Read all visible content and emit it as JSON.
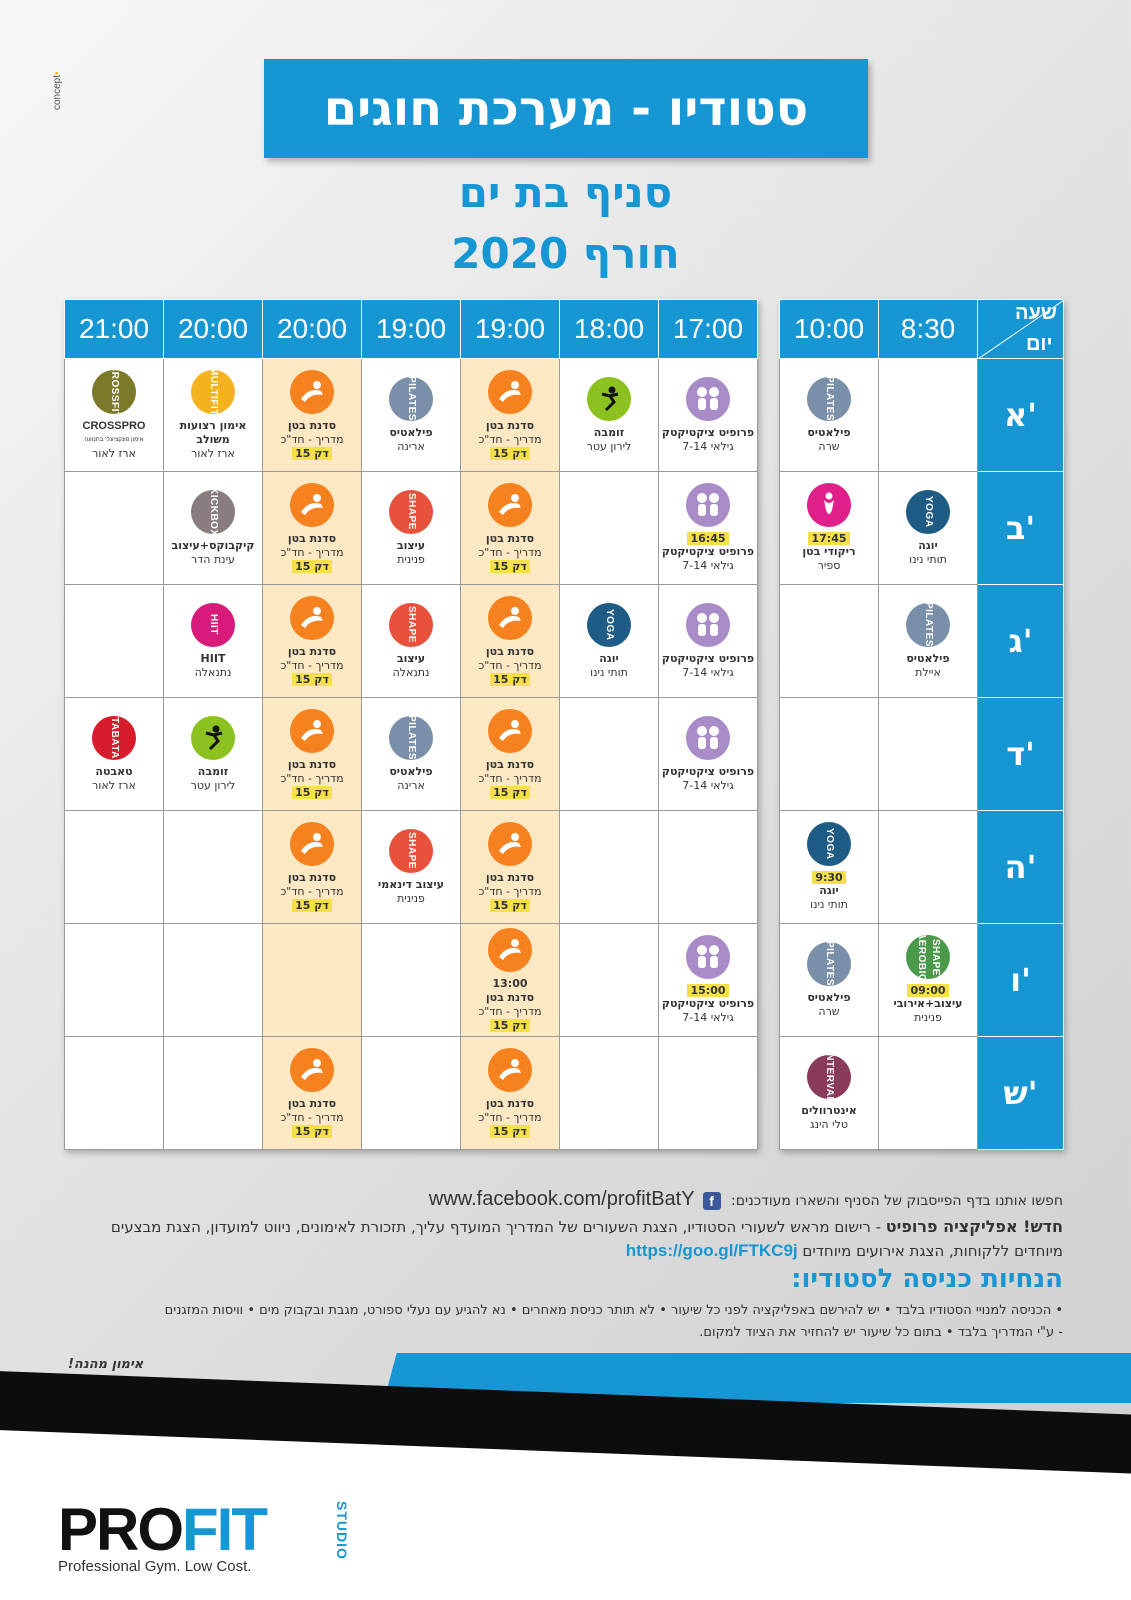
{
  "brand": {
    "concept": "concept"
  },
  "header": {
    "title": "סטודיו - מערכת חוגים",
    "branch": "סניף בת ים",
    "season": "חורף 2020"
  },
  "left_table": {
    "times": [
      "17:00",
      "18:00",
      "19:00",
      "19:00",
      "20:00",
      "20:00",
      "21:00"
    ],
    "rows": [
      [
        "pr|פרופיט ציקטיקטק|גילאי 7-14",
        "zm|זומבה|לירון עטר",
        "bt|סדנת בטן|מדריך - חד\"כ|15 דק",
        "pi|פילאטיס|ארינה",
        "bt|סדנת בטן|מדריך - חד\"כ|15 דק",
        "mu|אימון רצועות משולב|ארז לאור",
        "cp|CROSSPRO|ארז לאור"
      ],
      [
        "pr|פרופיט ציקטיקטק|גילאי 7-14|16:45",
        "",
        "bt|סדנת בטן|מדריך - חד\"כ|15 דק",
        "sh|עיצוב|פנינית",
        "bt|סדנת בטן|מדריך - חד\"כ|15 דק",
        "kb|קיקבוקס+עיצוב|עינת הדר",
        ""
      ],
      [
        "pr|פרופיט ציקטיקטק|גילאי 7-14",
        "yo|יוגה|תותי נינו",
        "bt|סדנת בטן|מדריך - חד\"כ|15 דק",
        "sh|עיצוב|נתנאלה",
        "bt|סדנת בטן|מדריך - חד\"כ|15 דק",
        "hi|HIIT|נתנאלה",
        ""
      ],
      [
        "pr|פרופיט ציקטיקטק|גילאי 7-14",
        "",
        "bt|סדנת בטן|מדריך - חד\"כ|15 דק",
        "pi|פילאטיס|ארינה",
        "bt|סדנת בטן|מדריך - חד\"כ|15 דק",
        "zm|זומבה|לירון עטר",
        "ta|טאבטה|ארז לאור"
      ],
      [
        "",
        "",
        "bt|סדנת בטן|מדריך - חד\"כ|15 דק",
        "sh|עיצוב דינאמי|פנינית",
        "bt|סדנת בטן|מדריך - חד\"כ|15 דק",
        "",
        ""
      ],
      [
        "pr|פרופיט ציקטיקטק|גילאי 7-14|15:00",
        "",
        "bt|סדנת בטן|מדריך - חד\"כ|15 דק|13:00",
        "",
        "",
        "",
        ""
      ],
      [
        "",
        "",
        "bt|סדנת בטן|מדריך - חד\"כ|15 דק",
        "",
        "bt|סדנת בטן|מדריך - חד\"כ|15 דק",
        "",
        ""
      ]
    ]
  },
  "right_table": {
    "corner_top": "שעה",
    "corner_bottom": "יום",
    "times": [
      "8:30",
      "10:00"
    ],
    "days": [
      "א'",
      "ב'",
      "ג'",
      "ד'",
      "ה'",
      "ו'",
      "ש'"
    ],
    "rows": [
      [
        "",
        "pi|פילאטיס|שרה"
      ],
      [
        "yo|יוגה|תותי נינו",
        "be|ריקודי בטן|ספיר|17:45"
      ],
      [
        "pi|פילאטיס|איילת",
        ""
      ],
      [
        "",
        ""
      ],
      [
        "",
        "yo|יוגה|תותי נינו|9:30"
      ],
      [
        "sa|עיצוב+אירובי|פנינית|09:00",
        "pi|פילאטיס|שרה"
      ],
      [
        "",
        "in|אינטרוולים|טלי הינג"
      ]
    ]
  },
  "icons": {
    "pr": {
      "name": "profit-kids-icon",
      "color": "#a88bc7",
      "label": ""
    },
    "zm": {
      "name": "zumba-icon",
      "color": "#8cc21f",
      "label": ""
    },
    "bt": {
      "name": "abs-workout-icon",
      "color": "#f5821f",
      "label": ""
    },
    "pi": {
      "name": "pilates-icon",
      "color": "#7a8fa8",
      "label": "PILATES"
    },
    "mu": {
      "name": "multifit-icon",
      "color": "#f5b21f",
      "label": "MULTIFIT"
    },
    "cp": {
      "name": "crossfit-icon",
      "color": "#7a7a2a",
      "label": "CROSSFIT"
    },
    "sh": {
      "name": "shape-icon",
      "color": "#e8523c",
      "label": "SHAPE"
    },
    "kb": {
      "name": "kickbox-icon",
      "color": "#8a7d7d",
      "label": "KICKBOX"
    },
    "yo": {
      "name": "yoga-icon",
      "color": "#1e5b85",
      "label": "YOGA"
    },
    "hi": {
      "name": "hiit-icon",
      "color": "#d81b7a",
      "label": "HIIT"
    },
    "ta": {
      "name": "tabata-icon",
      "color": "#d61b2a",
      "label": "TABATA"
    },
    "be": {
      "name": "belly-dance-icon",
      "color": "#e0208a",
      "label": ""
    },
    "sa": {
      "name": "shape-aerobic-icon",
      "color": "#4a9a4a",
      "label": "SHAPE AEROBIC"
    },
    "in": {
      "name": "interval-icon",
      "color": "#8a3a5a",
      "label": "INTERVAL"
    }
  },
  "crosspro_sub": "אימון פונקציונלי בתנועה",
  "footer": {
    "fb_text": "חפשו אותנו בדף הפייסבוק של הסניף והשארו מעודכנים:",
    "fb_url": "www.facebook.com/profitBatY",
    "app_bold": "חדש! אפליקציה פרופיט",
    "app_text": " - רישום מראש לשעורי הסטודיו, הצגת השעורים של המדריך המועדף עליך, תזכורת לאימונים, ניווט למועדון, הצגת מבצעים מיוחדים ללקוחות, הצגת אירועים מיוחדים ",
    "app_link": "https://goo.gl/FTKC9j",
    "rules_title": "הנחיות כניסה לסטודיו:",
    "rules_line1": "• הכניסה למנויי הסטודיו בלבד • יש להירשם באפליקציה לפני כל שיעור • לא תותר כניסת מאחרים • נא להגיע עם נעלי ספורט, מגבת ובקבוק מים • וויסות המזגנים",
    "rules_line2": "- ע\"י המדריך בלבד • בתום כל שיעור יש להחזיר את הציוד למקום.",
    "enjoy": "אימון מהנה!"
  },
  "logo": {
    "pro": "PRO",
    "fit": "FIT",
    "studio": "STUDIO",
    "tagline": "Professional Gym. Low Cost."
  }
}
